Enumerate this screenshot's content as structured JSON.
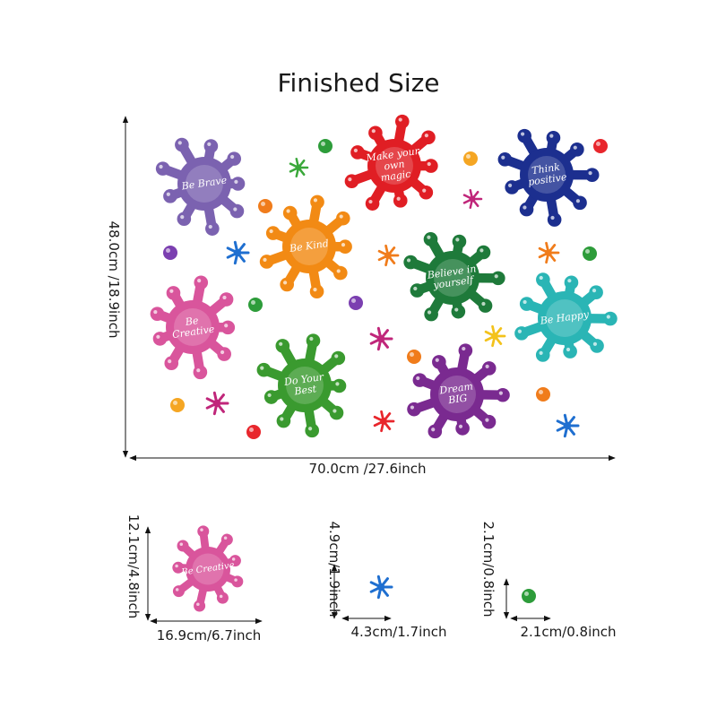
{
  "title": "Finished Size",
  "main_dims": {
    "height": "48.0cm /18.9inch",
    "width": "70.0cm /27.6inch"
  },
  "splats": [
    {
      "text": "Be Brave",
      "color": "#7b62b0"
    },
    {
      "text": "Make your own magic",
      "color": "#e01e24"
    },
    {
      "text": "Think positive",
      "color": "#1c2f8f"
    },
    {
      "text": "Be Kind",
      "color": "#f28a14"
    },
    {
      "text": "Believe in yourself",
      "color": "#1e7a3a"
    },
    {
      "text": "Be Creative",
      "color": "#d9559c"
    },
    {
      "text": "Be Happy",
      "color": "#2ab5b5"
    },
    {
      "text": "Do Your Best",
      "color": "#3a9a2f"
    },
    {
      "text": "Dream BIG",
      "color": "#7a2a90"
    }
  ],
  "samples": [
    {
      "name": "Be Creative splat",
      "text": "Be Creative",
      "height": "12.1cm/4.8inch",
      "width": "16.9cm/6.7inch",
      "color": "#d9559c"
    },
    {
      "name": "blue splash",
      "height": "4.9cm/1.9inch",
      "width": "4.3cm/1.7inch",
      "color": "#1f6fd0"
    },
    {
      "name": "green dot",
      "height": "2.1cm/0.8inch",
      "width": "2.1cm/0.8inch",
      "color": "#22a83a"
    }
  ],
  "dot_colors": [
    "#e8262c",
    "#f5a623",
    "#7b3fb0",
    "#2d9c3a",
    "#f07c1b",
    "#1f6fd0",
    "#f3c21b"
  ]
}
